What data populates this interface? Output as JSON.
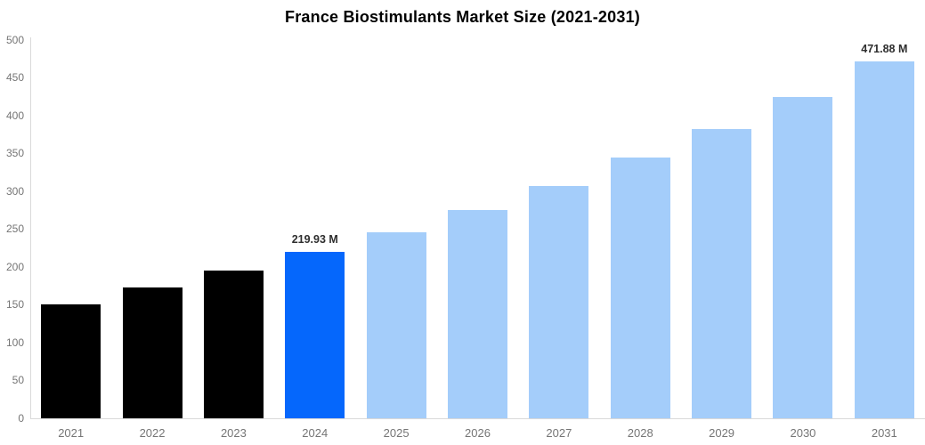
{
  "title": "France Biostimulants Market Size (2021-2031)",
  "colors": {
    "historical": "#000000",
    "highlight": "#0567FC",
    "forecast": "#A4CDFA",
    "axis_line": "#d9d9d9",
    "tick_label": "#757575",
    "annotation": "#2e2e2e",
    "title": "#000000"
  },
  "chart_data": {
    "type": "bar",
    "title": "France Biostimulants Market Size (2021-2031)",
    "unit": "M",
    "categories": [
      "2021",
      "2022",
      "2023",
      "2024",
      "2025",
      "2026",
      "2027",
      "2028",
      "2029",
      "2030",
      "2031"
    ],
    "values": [
      151,
      173,
      195,
      219.93,
      246,
      276,
      308,
      345,
      383,
      425,
      471.88
    ],
    "bar_roles": [
      "historical",
      "historical",
      "historical",
      "highlight",
      "forecast",
      "forecast",
      "forecast",
      "forecast",
      "forecast",
      "forecast",
      "forecast"
    ],
    "annotations": [
      {
        "category_index": 3,
        "text": "219.93 M"
      },
      {
        "category_index": 10,
        "text": "471.88 M"
      }
    ],
    "xlabel": "",
    "ylabel": "",
    "ylim": [
      0,
      500
    ],
    "yticks": [
      0,
      50,
      100,
      150,
      200,
      250,
      300,
      350,
      400,
      450,
      500
    ],
    "grid": false,
    "legend": null
  }
}
